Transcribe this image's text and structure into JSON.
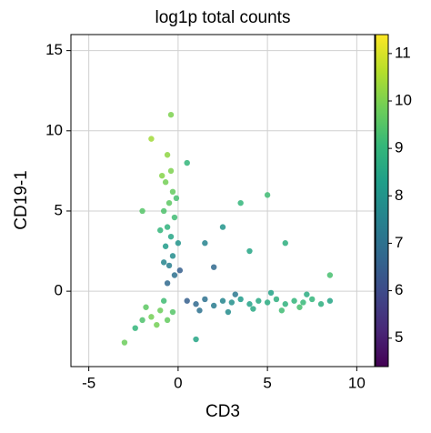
{
  "chart_data": {
    "type": "scatter",
    "title": "log1p total counts",
    "x_label": "CD3",
    "y_label": "CD19-1",
    "xlim": [
      -6,
      11
    ],
    "ylim": [
      -4.7,
      16
    ],
    "xticks": [
      -5,
      0,
      5,
      10
    ],
    "yticks": [
      0,
      5,
      10,
      15
    ],
    "grid": true,
    "colormap": "viridis",
    "clim": [
      4.4,
      11.4
    ],
    "cticks": [
      5,
      6,
      7,
      8,
      9,
      10,
      11
    ],
    "x": [
      -0.6,
      -0.4,
      -0.7,
      -0.3,
      -0.5,
      -0.8,
      -0.2,
      -0.6,
      -0.4,
      -0.7,
      -0.3,
      -0.5,
      -0.2,
      -0.6,
      -0.9,
      -0.1,
      -1.0,
      0.0,
      -0.8,
      0.1,
      0.5,
      1.0,
      1.5,
      2.0,
      2.5,
      3.0,
      3.5,
      4.0,
      4.5,
      5.0,
      5.5,
      6.0,
      6.5,
      7.0,
      7.5,
      8.0,
      8.5,
      1.2,
      2.8,
      4.2,
      5.8,
      6.8,
      3.2,
      5.2,
      7.2,
      -1.0,
      -1.5,
      -0.6,
      -1.8,
      -0.3,
      -1.2,
      -2.0,
      -0.8,
      -2.4,
      2.5,
      4.0,
      1.5,
      3.5,
      6.0,
      5.0,
      -1.5,
      0.5,
      -2.0,
      -3.0,
      8.5,
      2.0,
      -0.4,
      1.0
    ],
    "y": [
      8.5,
      7.5,
      6.8,
      6.2,
      5.5,
      5.0,
      4.6,
      4.0,
      3.4,
      2.8,
      2.2,
      1.6,
      1.0,
      0.5,
      7.2,
      5.8,
      3.8,
      3.0,
      1.8,
      1.3,
      -0.6,
      -0.8,
      -0.5,
      -0.9,
      -0.6,
      -0.7,
      -0.5,
      -0.8,
      -0.6,
      -0.7,
      -0.5,
      -0.8,
      -0.6,
      -0.7,
      -0.5,
      -0.8,
      -0.6,
      -1.2,
      -1.3,
      -1.1,
      -1.2,
      -1.0,
      -0.2,
      -0.1,
      -0.2,
      -1.2,
      -1.6,
      -1.8,
      -1.0,
      -1.3,
      -2.1,
      -1.8,
      -0.6,
      -2.3,
      4.0,
      2.5,
      3.0,
      5.5,
      3.0,
      6.0,
      9.5,
      8.0,
      5.0,
      -3.2,
      1.0,
      1.5,
      11.0,
      -3.0
    ],
    "color_values": [
      10.2,
      10.0,
      9.9,
      9.7,
      9.6,
      9.4,
      9.2,
      8.9,
      8.5,
      8.2,
      7.8,
      7.4,
      7.0,
      6.8,
      10.1,
      9.3,
      9.0,
      8.0,
      7.6,
      6.5,
      6.5,
      6.8,
      7.0,
      7.3,
      7.6,
      7.9,
      8.2,
      8.4,
      8.6,
      8.7,
      8.8,
      8.9,
      9.0,
      9.1,
      9.0,
      8.8,
      8.5,
      7.0,
      7.8,
      8.6,
      9.2,
      9.3,
      7.2,
      8.4,
      8.7,
      9.8,
      9.9,
      9.7,
      9.6,
      9.5,
      9.9,
      9.4,
      9.2,
      9.0,
      8.0,
      8.5,
      7.5,
      9.0,
      8.8,
      9.2,
      10.4,
      9.0,
      9.5,
      9.8,
      9.3,
      6.8,
      10.0,
      8.5
    ]
  }
}
